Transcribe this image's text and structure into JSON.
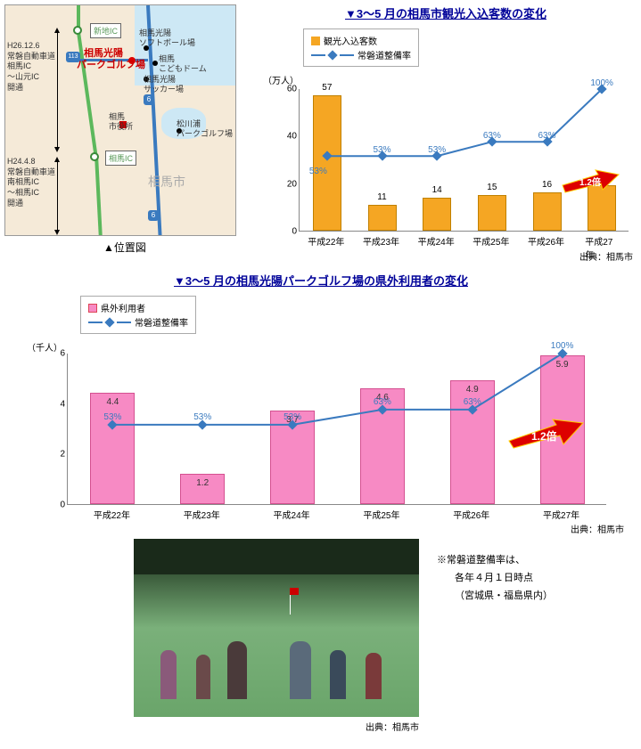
{
  "map": {
    "caption": "▲位置図",
    "main_label_1": "相馬光陽",
    "main_label_2": "パークゴルフ場",
    "soma_city": "相馬市",
    "ic_shinchi": "新地IC",
    "ic_soma": "相馬IC",
    "route6": "6",
    "route113": "113",
    "note1_line1": "H26.12.6",
    "note1_line2": "常磐自動車道",
    "note1_line3": "相馬IC",
    "note1_line4": "～山元IC",
    "note1_line5": "開通",
    "note2_line1": "H24.4.8",
    "note2_line2": "常磐自動車道",
    "note2_line3": "南相馬IC",
    "note2_line4": "～相馬IC",
    "note2_line5": "開通",
    "spot_softball": "相馬光陽\nソフトボール場",
    "spot_dome": "相馬\nこどもドーム",
    "spot_soccer": "相馬光陽\nサッカー場",
    "spot_cityhall": "相馬\n市役所",
    "spot_park": "松川浦\nパークゴルフ場"
  },
  "chart1": {
    "title": "▼3～5 月の相馬市観光入込客数の変化",
    "legend_bar": "観光入込客数",
    "legend_line": "常磐道整備率",
    "y_unit": "（万人）",
    "y_ticks": [
      "20",
      "40",
      "60"
    ],
    "categories": [
      "平成22年",
      "平成23年",
      "平成24年",
      "平成25年",
      "平成26年",
      "平成27年"
    ],
    "values": [
      57,
      11,
      14,
      15,
      16,
      19
    ],
    "value_labels": [
      "57",
      "11",
      "14",
      "15",
      "16",
      "19"
    ],
    "line_values": [
      53,
      53,
      53,
      63,
      63,
      100
    ],
    "line_labels": [
      "53%",
      "53%",
      "53%",
      "63%",
      "63%",
      "100%"
    ],
    "multiplier": "1.2倍",
    "source": "出典：相馬市"
  },
  "chart2": {
    "title": "▼3～5 月の相馬光陽パークゴルフ場の県外利用者の変化",
    "legend_bar": "県外利用者",
    "legend_line": "常磐道整備率",
    "y_unit": "（千人）",
    "y_ticks": [
      "2",
      "4",
      "6"
    ],
    "categories": [
      "平成22年",
      "平成23年",
      "平成24年",
      "平成25年",
      "平成26年",
      "平成27年"
    ],
    "values": [
      4.4,
      1.2,
      3.7,
      4.6,
      4.9,
      5.9
    ],
    "value_labels": [
      "4.4",
      "1.2",
      "3.7",
      "4.6",
      "4.9",
      "5.9"
    ],
    "line_values": [
      53,
      53,
      53,
      63,
      63,
      100
    ],
    "line_labels": [
      "53%",
      "53%",
      "53%",
      "63%",
      "63%",
      "100%"
    ],
    "multiplier": "1.2倍",
    "source": "出典：相馬市"
  },
  "photo": {
    "label": "相馬光陽パークゴルフ場",
    "source": "出典：相馬市"
  },
  "note": {
    "line1": "※常磐道整備率は、",
    "line2": "各年４月１日時点",
    "line3": "（宮城県・福島県内）"
  }
}
